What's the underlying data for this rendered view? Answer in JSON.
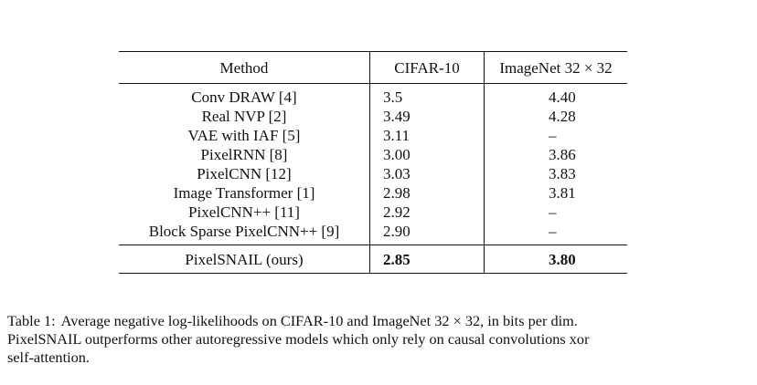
{
  "table": {
    "headers": {
      "method": "Method",
      "cifar": "CIFAR-10",
      "imagenet": "ImageNet 32 × 32"
    },
    "rows": [
      {
        "method": "Conv DRAW [4]",
        "cifar": "3.5",
        "imagenet": "4.40"
      },
      {
        "method": "Real NVP [2]",
        "cifar": "3.49",
        "imagenet": "4.28"
      },
      {
        "method": "VAE with IAF [5]",
        "cifar": "3.11",
        "imagenet": "–"
      },
      {
        "method": "PixelRNN [8]",
        "cifar": "3.00",
        "imagenet": "3.86"
      },
      {
        "method": "PixelCNN [12]",
        "cifar": "3.03",
        "imagenet": "3.83"
      },
      {
        "method": "Image Transformer [1]",
        "cifar": "2.98",
        "imagenet": "3.81"
      },
      {
        "method": "PixelCNN++ [11]",
        "cifar": "2.92",
        "imagenet": "–"
      },
      {
        "method": "Block Sparse PixelCNN++ [9]",
        "cifar": "2.90",
        "imagenet": "–"
      }
    ],
    "ours": {
      "method": "PixelSNAIL (ours)",
      "cifar": "2.85",
      "imagenet": "3.80"
    }
  },
  "caption": {
    "label": "Table 1:",
    "line1": "Average negative log-likelihoods on CIFAR-10 and ImageNet 32 × 32, in bits per dim.",
    "line2": "PixelSNAIL outperforms other autoregressive models which only rely on causal convolutions xor",
    "line3": "self-attention."
  }
}
